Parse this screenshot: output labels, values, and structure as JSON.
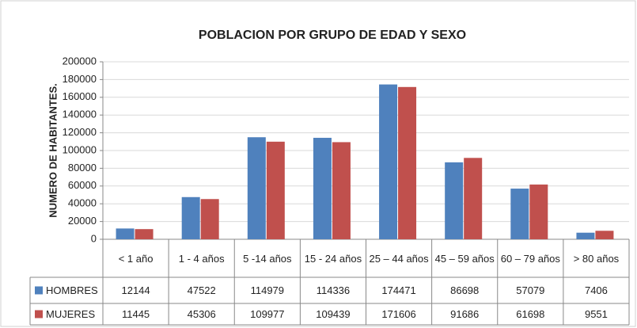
{
  "chart_data": {
    "type": "bar",
    "title": "POBLACION POR GRUPO DE EDAD Y SEXO",
    "y_label": "NUMERO DE HABITANTES.",
    "categories": [
      "< 1 año",
      "1 - 4 años",
      "5 -14 años",
      "15 - 24 años",
      "25 – 44 años",
      "45 – 59 años",
      "60 – 79 años",
      "> 80 años"
    ],
    "series": [
      {
        "name": "HOMBRES",
        "color": "#4f81bd",
        "values": [
          12144,
          47522,
          114979,
          114336,
          174471,
          86698,
          57079,
          7406
        ]
      },
      {
        "name": "MUJERES",
        "color": "#c0504d",
        "values": [
          11445,
          45306,
          109977,
          109439,
          171606,
          91686,
          61698,
          9551
        ]
      }
    ],
    "ylim": [
      0,
      200000
    ],
    "yticks": [
      0,
      20000,
      40000,
      60000,
      80000,
      100000,
      120000,
      140000,
      160000,
      180000,
      200000
    ],
    "grid": true
  }
}
